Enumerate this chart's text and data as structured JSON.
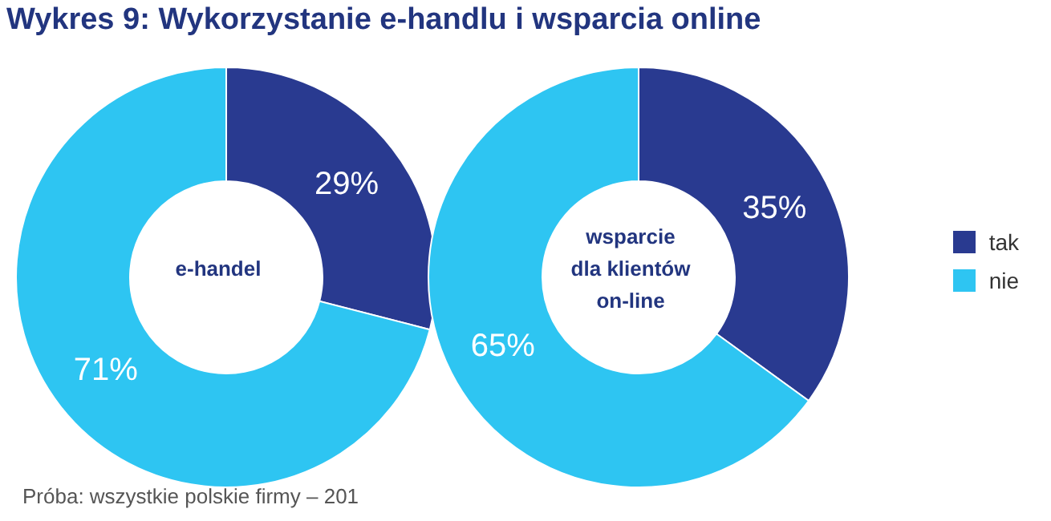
{
  "chart_data": {
    "type": "donut",
    "title": "Wykres 9: Wykorzystanie e-handlu i wsparcia online",
    "categories": [
      "tak",
      "nie"
    ],
    "colors": [
      "#293a90",
      "#2ec5f2"
    ],
    "legend": "right",
    "annotations": [
      "Próba: wszystkie polskie firmy – 201"
    ],
    "series": [
      {
        "name": "e-handel",
        "values": [
          29,
          71
        ],
        "value_labels": [
          "29%",
          "71%"
        ]
      },
      {
        "name": "wsparcie\ndla klientów\non-line",
        "values": [
          35,
          65
        ],
        "value_labels": [
          "35%",
          "65%"
        ]
      }
    ]
  }
}
